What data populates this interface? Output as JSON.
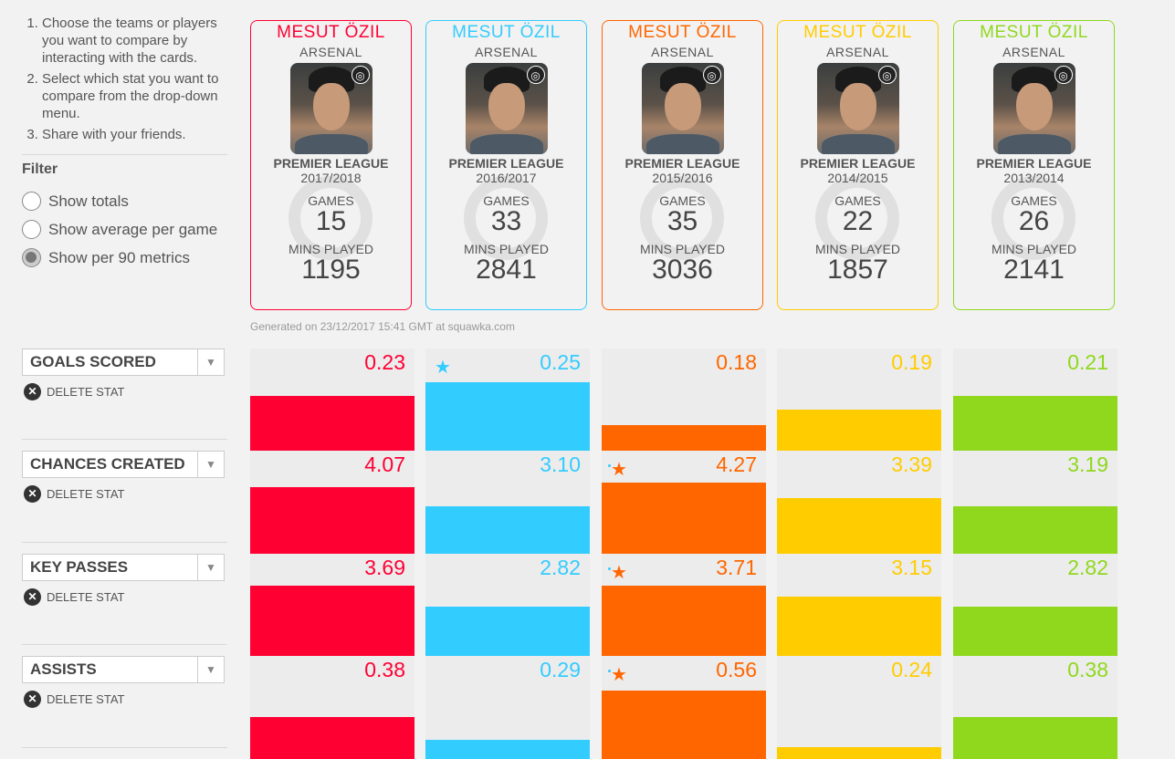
{
  "instructions": [
    "Choose the teams or players you want to compare by interacting with the cards.",
    "Select which stat you want to compare from the drop-down menu.",
    "Share with your friends."
  ],
  "filter": {
    "title": "Filter",
    "options": [
      "Show totals",
      "Show average per game",
      "Show per 90 metrics"
    ],
    "selected": 2
  },
  "generated": "Generated on 23/12/2017 15:41 GMT at squawka.com",
  "stat_labels": {
    "games": "GAMES",
    "mins": "MINS PLAYED"
  },
  "cards": [
    {
      "player": "MESUT ÖZIL",
      "club": "ARSENAL",
      "league": "PREMIER LEAGUE",
      "season": "2017/2018",
      "games": "15",
      "mins": "1195",
      "color": "#ff0033"
    },
    {
      "player": "MESUT ÖZIL",
      "club": "ARSENAL",
      "league": "PREMIER LEAGUE",
      "season": "2016/2017",
      "games": "33",
      "mins": "2841",
      "color": "#33ccff"
    },
    {
      "player": "MESUT ÖZIL",
      "club": "ARSENAL",
      "league": "PREMIER LEAGUE",
      "season": "2015/2016",
      "games": "35",
      "mins": "3036",
      "color": "#ff6600"
    },
    {
      "player": "MESUT ÖZIL",
      "club": "ARSENAL",
      "league": "PREMIER LEAGUE",
      "season": "2014/2015",
      "games": "22",
      "mins": "1857",
      "color": "#ffcc00"
    },
    {
      "player": "MESUT ÖZIL",
      "club": "ARSENAL",
      "league": "PREMIER LEAGUE",
      "season": "2013/2014",
      "games": "26",
      "mins": "2141",
      "color": "#8fd81d"
    }
  ],
  "delete_label": "DELETE STAT",
  "stats": [
    {
      "name": "GOALS SCORED",
      "values": [
        "0.23",
        "0.25",
        "0.18",
        "0.19",
        "0.21"
      ],
      "levels": [
        0.59,
        0.71,
        0.34,
        0.48,
        0.59
      ],
      "best": 1
    },
    {
      "name": "CHANCES CREATED",
      "values": [
        "4.07",
        "3.10",
        "4.27",
        "3.39",
        "3.19"
      ],
      "levels": [
        0.69,
        0.52,
        0.73,
        0.59,
        0.52
      ],
      "best": 2
    },
    {
      "name": "KEY PASSES",
      "values": [
        "3.69",
        "2.82",
        "3.71",
        "3.15",
        "2.82"
      ],
      "levels": [
        0.73,
        0.55,
        0.73,
        0.63,
        0.55
      ],
      "best": 2
    },
    {
      "name": "ASSISTS",
      "values": [
        "0.38",
        "0.29",
        "0.56",
        "0.24",
        "0.38"
      ],
      "levels": [
        0.48,
        0.28,
        0.7,
        0.22,
        0.48
      ],
      "best": 2
    }
  ],
  "icons": {
    "star": "star-icon",
    "delete": "close-circle-icon",
    "dropdown": "chevron-down-icon",
    "badge": "club-badge-icon"
  }
}
